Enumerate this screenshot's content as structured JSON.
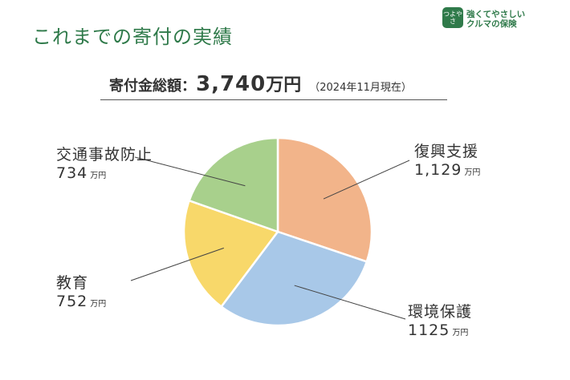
{
  "header": {
    "title": "これまでの寄付の実績",
    "logo_badge": "つよやさ",
    "logo_line1": "強くてやさしい",
    "logo_line2": "クルマの保険"
  },
  "summary": {
    "label": "寄付金総額：",
    "amount": "3,740",
    "unit": "万円",
    "note": "（2024年11月現在）"
  },
  "chart_data": {
    "type": "pie",
    "unit": "万円",
    "slices": [
      {
        "name": "復興支援",
        "value": 1129,
        "value_label": "1,129",
        "color": "#f2b48a"
      },
      {
        "name": "環境保護",
        "value": 1125,
        "value_label": "1125",
        "color": "#a8c8e8"
      },
      {
        "name": "教育",
        "value": 752,
        "value_label": "752",
        "color": "#f8d86a"
      },
      {
        "name": "交通事故防止",
        "value": 734,
        "value_label": "734",
        "color": "#a8d08c"
      }
    ]
  }
}
